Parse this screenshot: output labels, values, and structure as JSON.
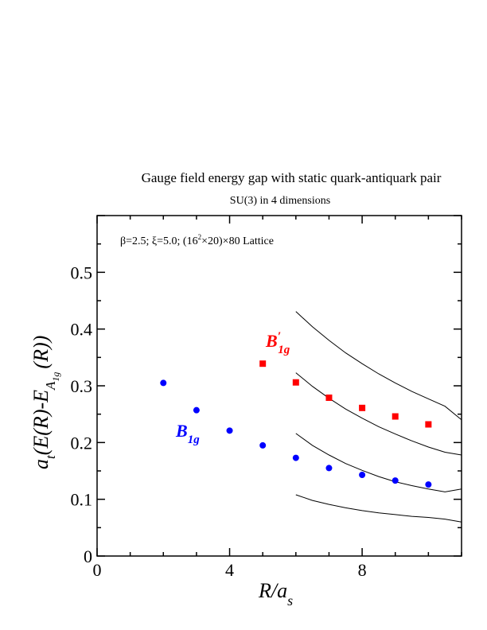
{
  "chart_data": {
    "type": "scatter",
    "title": "Gauge field energy gap with static quark-antiquark pair",
    "subtitle": "SU(3) in 4 dimensions",
    "annotation": {
      "prefix": "β=2.5;  ξ=5.0; (16",
      "sup": "2",
      "suffix": "×20)×80 Lattice"
    },
    "xlabel": {
      "main": "R/a",
      "sub": "s"
    },
    "ylabel": {
      "main": "a",
      "sub_t": "t",
      "mid": "(E(R)-E",
      "sub_A": "A",
      "sub_1g": "1g",
      "tail": "(R))"
    },
    "xlim": [
      0,
      11
    ],
    "ylim": [
      0,
      0.6
    ],
    "x_ticks": [
      "0",
      "4",
      "8"
    ],
    "y_ticks": [
      "0",
      "0.1",
      "0.2",
      "0.3",
      "0.4",
      "0.5"
    ],
    "grid": false,
    "series": [
      {
        "name": "B1g",
        "label_main": "B",
        "label_sub": "1g",
        "label_prime": "",
        "color": "#0000ff",
        "marker": "circle",
        "x": [
          2,
          3,
          4,
          5,
          6,
          7,
          8,
          9,
          10
        ],
        "y": [
          0.305,
          0.257,
          0.221,
          0.195,
          0.173,
          0.155,
          0.143,
          0.133,
          0.126
        ]
      },
      {
        "name": "B'1g",
        "label_main": "B",
        "label_sub": "1g",
        "label_prime": "′",
        "color": "#ff0000",
        "marker": "square",
        "x": [
          5,
          6,
          7,
          8,
          9,
          10
        ],
        "y": [
          0.339,
          0.306,
          0.279,
          0.261,
          0.246,
          0.232
        ]
      }
    ],
    "curves": [
      {
        "x": [
          6,
          6.5,
          7,
          7.5,
          8,
          8.5,
          9,
          9.5,
          10,
          10.5,
          11
        ],
        "y": [
          0.431,
          0.404,
          0.38,
          0.358,
          0.339,
          0.321,
          0.305,
          0.29,
          0.277,
          0.264,
          0.24
        ]
      },
      {
        "x": [
          6,
          6.5,
          7,
          7.5,
          8,
          8.5,
          9,
          9.5,
          10,
          10.5,
          11
        ],
        "y": [
          0.323,
          0.299,
          0.278,
          0.259,
          0.243,
          0.228,
          0.215,
          0.203,
          0.192,
          0.183,
          0.178
        ]
      },
      {
        "x": [
          6,
          6.5,
          7,
          7.5,
          8,
          8.5,
          9,
          9.5,
          10,
          10.5,
          11
        ],
        "y": [
          0.216,
          0.195,
          0.178,
          0.163,
          0.151,
          0.14,
          0.131,
          0.124,
          0.118,
          0.113,
          0.118
        ]
      },
      {
        "x": [
          6,
          6.5,
          7,
          7.5,
          8,
          8.5,
          9,
          9.5,
          10,
          10.5,
          11
        ],
        "y": [
          0.108,
          0.098,
          0.091,
          0.085,
          0.08,
          0.076,
          0.073,
          0.07,
          0.068,
          0.065,
          0.06
        ]
      }
    ]
  }
}
